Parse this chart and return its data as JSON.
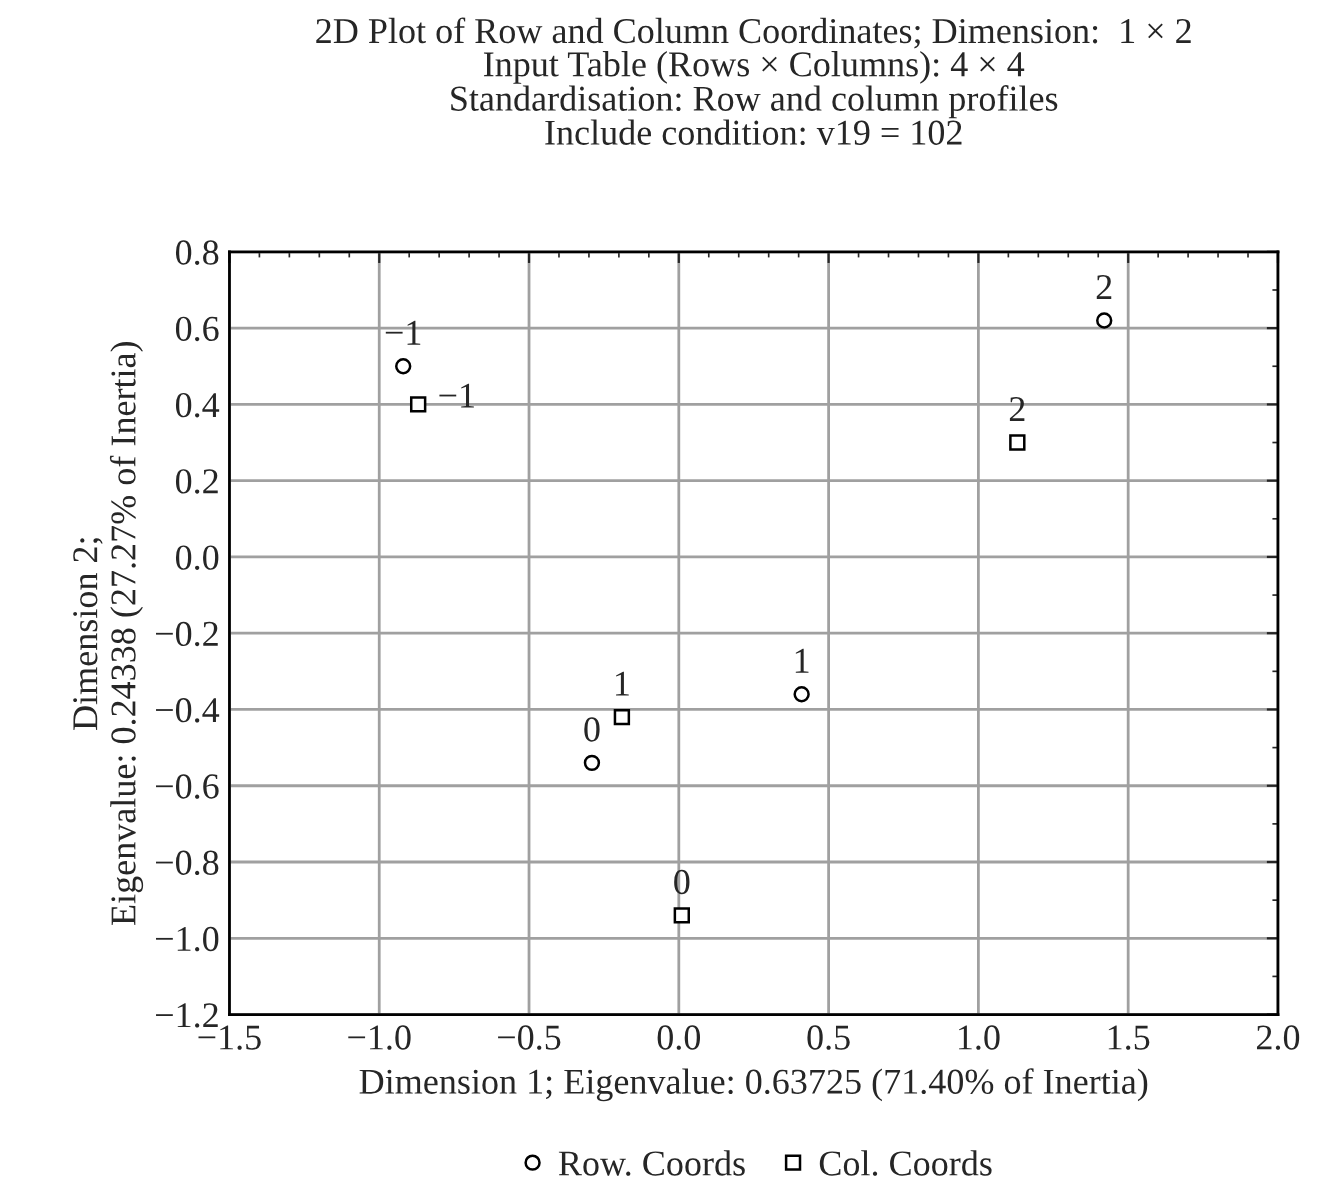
{
  "chart_data": {
    "type": "scatter",
    "title": "2D Plot of Row and Column Coordinates; Dimension:  1 × 2",
    "subtitle": "Input Table (Rows × Columns): 4 × 4\nStandardisation: Row and column profiles\nInclude condition: v19 = 102",
    "xlabel": "Dimension 1; Eigenvalue: 0.63725 (71.40% of Inertia)",
    "ylabel": "Dimension 2;\nEigenvalue: 0.24338 (27.27% of Inertia)",
    "series": [
      {
        "name": "Row. Coords",
        "color": "#000000",
        "marker": "circle",
        "x": [
          -0.92,
          -0.29,
          0.41,
          1.42
        ],
        "values": [
          0.5,
          -0.54,
          -0.36,
          0.62
        ]
      },
      {
        "name": "Col. Coords",
        "color": "#000000",
        "marker": "square",
        "x": [
          -0.87,
          0.01,
          -0.19,
          1.13
        ],
        "values": [
          0.4,
          -0.94,
          -0.42,
          0.3
        ]
      }
    ],
    "annotations": [
      {
        "text": "−1",
        "x": -0.92,
        "y": 0.5
      },
      {
        "text": "0",
        "x": -0.29,
        "y": -0.54
      },
      {
        "text": "1",
        "x": 0.41,
        "y": -0.36
      },
      {
        "text": "2",
        "x": 1.42,
        "y": 0.62
      },
      {
        "text": "−1",
        "x": -0.87,
        "y": 0.4
      },
      {
        "text": "0",
        "x": 0.01,
        "y": -0.94
      },
      {
        "text": "1",
        "x": -0.19,
        "y": -0.42
      },
      {
        "text": "2",
        "x": 1.13,
        "y": 0.3
      }
    ],
    "xlim": [
      -1.5,
      2.0
    ],
    "ylim": [
      -1.2,
      0.8
    ],
    "xticks": [
      {
        "value": -1.5,
        "label": "−1.5"
      },
      {
        "value": -1.0,
        "label": "−1.0"
      },
      {
        "value": -0.5,
        "label": "−0.5"
      },
      {
        "value": 0.0,
        "label": "0.0"
      },
      0.5,
      {
        "value": 1.0,
        "label": "1.0"
      },
      1.5,
      {
        "value": 2.0,
        "label": "2.0"
      }
    ],
    "yticks": [
      {
        "value": -1.2,
        "label": "−1.2"
      },
      {
        "value": -1.0,
        "label": "−1.0"
      },
      {
        "value": -0.8,
        "label": "−0.8"
      },
      {
        "value": -0.6,
        "label": "−0.6"
      },
      {
        "value": -0.4,
        "label": "−0.4"
      },
      {
        "value": -0.2,
        "label": "−0.2"
      },
      {
        "value": 0.0,
        "label": "0.0"
      },
      0.2,
      0.4,
      0.6,
      0.8
    ],
    "grid": true,
    "legend": "bottom"
  }
}
